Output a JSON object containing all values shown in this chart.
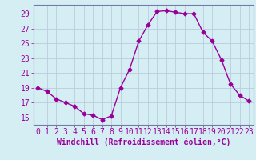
{
  "x": [
    0,
    1,
    2,
    3,
    4,
    5,
    6,
    7,
    8,
    9,
    10,
    11,
    12,
    13,
    14,
    15,
    16,
    17,
    18,
    19,
    20,
    21,
    22,
    23
  ],
  "y": [
    19,
    18.5,
    17.5,
    17,
    16.5,
    15.5,
    15.3,
    14.7,
    15.2,
    19,
    21.5,
    25.3,
    27.5,
    29.3,
    29.4,
    29.2,
    29.0,
    29.0,
    26.5,
    25.3,
    22.8,
    19.5,
    18,
    17.2
  ],
  "line_color": "#990099",
  "marker": "D",
  "marker_size": 2.5,
  "xlabel": "Windchill (Refroidissement éolien,°C)",
  "xlabel_fontsize": 7,
  "xlabel_color": "#990099",
  "yticks": [
    15,
    17,
    19,
    21,
    23,
    25,
    27,
    29
  ],
  "xticks": [
    0,
    1,
    2,
    3,
    4,
    5,
    6,
    7,
    8,
    9,
    10,
    11,
    12,
    13,
    14,
    15,
    16,
    17,
    18,
    19,
    20,
    21,
    22,
    23
  ],
  "ylim": [
    14.0,
    30.2
  ],
  "xlim": [
    -0.5,
    23.5
  ],
  "bg_color": "#d4eef4",
  "grid_color": "#bbccdd",
  "spine_color": "#7777aa",
  "tick_fontsize": 7,
  "tick_color": "#990099",
  "linewidth": 1.0
}
